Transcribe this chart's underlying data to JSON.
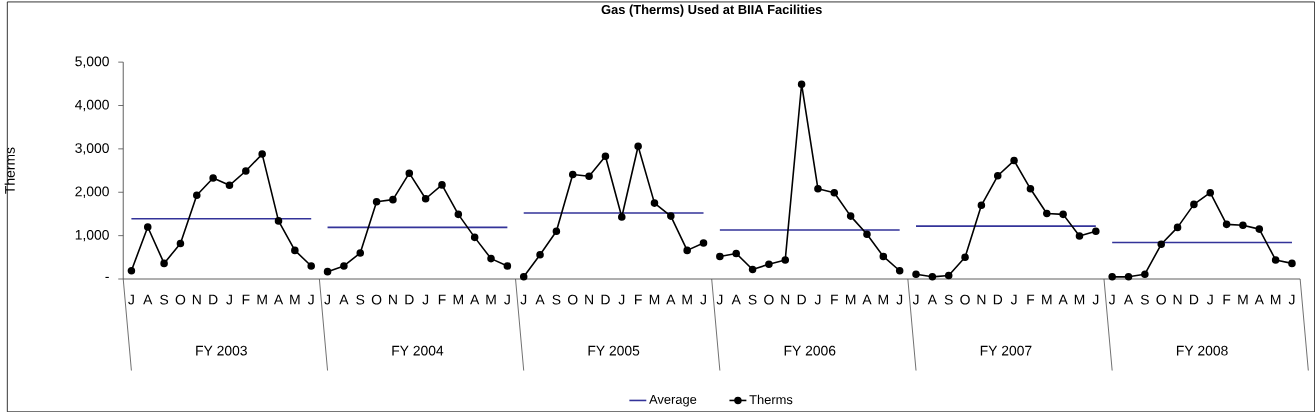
{
  "chart_data": {
    "type": "line",
    "title": "Gas (Therms) Used at BIIA Facilities",
    "ylabel": "Therms",
    "categories": [
      "J",
      "A",
      "S",
      "O",
      "N",
      "D",
      "J",
      "F",
      "M",
      "A",
      "M",
      "J",
      "J",
      "A",
      "S",
      "O",
      "N",
      "D",
      "J",
      "F",
      "M",
      "A",
      "M",
      "J",
      "J",
      "A",
      "S",
      "O",
      "N",
      "D",
      "J",
      "F",
      "M",
      "A",
      "M",
      "J",
      "J",
      "A",
      "S",
      "O",
      "N",
      "D",
      "J",
      "F",
      "M",
      "A",
      "M",
      "J",
      "J",
      "A",
      "S",
      "O",
      "N",
      "D",
      "J",
      "F",
      "M",
      "A",
      "M",
      "J",
      "J",
      "A",
      "S",
      "O",
      "N",
      "D",
      "J",
      "F",
      "M",
      "A",
      "M",
      "J"
    ],
    "series": [
      {
        "name": "Average",
        "color": "#333399",
        "marker": "none",
        "values": [
          1390,
          1390,
          1390,
          1390,
          1390,
          1390,
          1390,
          1390,
          1390,
          1390,
          1390,
          1390,
          1190,
          1190,
          1190,
          1190,
          1190,
          1190,
          1190,
          1190,
          1190,
          1190,
          1190,
          1190,
          1520,
          1520,
          1520,
          1520,
          1520,
          1520,
          1520,
          1520,
          1520,
          1520,
          1520,
          1520,
          1130,
          1130,
          1130,
          1130,
          1130,
          1130,
          1130,
          1130,
          1130,
          1130,
          1130,
          1130,
          1220,
          1220,
          1220,
          1220,
          1220,
          1220,
          1220,
          1220,
          1220,
          1220,
          1220,
          1220,
          840,
          840,
          840,
          840,
          840,
          840,
          840,
          840,
          840,
          840,
          840,
          840
        ]
      },
      {
        "name": "Therms",
        "color": "#000000",
        "marker": "circle",
        "values": [
          190,
          1200,
          360,
          820,
          1930,
          2330,
          2160,
          2490,
          2880,
          1340,
          660,
          300,
          170,
          300,
          600,
          1780,
          1830,
          2440,
          1850,
          2170,
          1490,
          960,
          470,
          300,
          50,
          560,
          1100,
          2410,
          2370,
          2830,
          1430,
          3060,
          1750,
          1450,
          660,
          830,
          520,
          590,
          220,
          340,
          440,
          4490,
          2080,
          1990,
          1450,
          1030,
          520,
          190,
          110,
          50,
          80,
          500,
          1700,
          2380,
          2730,
          2080,
          1510,
          1490,
          990,
          1100,
          50,
          50,
          110,
          800,
          1190,
          1720,
          1990,
          1260,
          1240,
          1150,
          440,
          360
        ]
      }
    ],
    "annotations": [
      "FY 2003",
      "FY 2004",
      "FY 2005",
      "FY 2006",
      "FY 2007",
      "FY 2008"
    ],
    "ylim": [
      0,
      5000
    ],
    "yticks": [
      {
        "value": 0,
        "label": "-"
      },
      {
        "value": 1000,
        "label": "1,000"
      },
      {
        "value": 2000,
        "label": "2,000"
      },
      {
        "value": 3000,
        "label": "3,000"
      },
      {
        "value": 4000,
        "label": "4,000"
      },
      {
        "value": 5000,
        "label": "5,000"
      }
    ],
    "grid": false,
    "legend": "bottom",
    "line_style": "solid"
  }
}
